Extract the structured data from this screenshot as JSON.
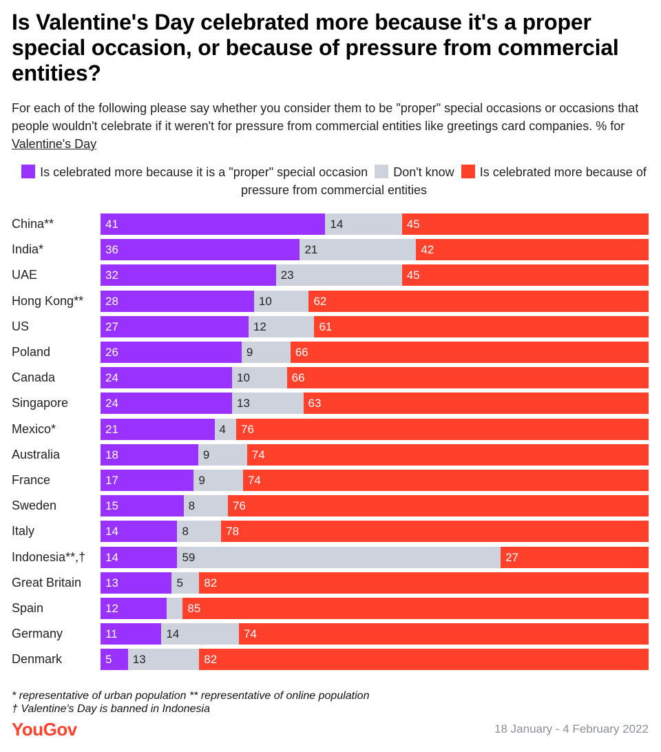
{
  "title": "Is Valentine's Day celebrated more because it's a proper special occasion, or because of pressure from commercial entities?",
  "subtitle_main": "For each of the following please say whether you consider them to be \"proper\" special occasions or occasions that people wouldn't celebrate if it weren't for pressure from commercial entities like greetings card companies. % for ",
  "subtitle_link": "Valentine's Day",
  "legend": [
    {
      "label": "Is celebrated more because it is a \"proper\" special occasion",
      "color": "#9a32ff"
    },
    {
      "label": "Don't know",
      "color": "#cdd2dc"
    },
    {
      "label": "Is celebrated more because of pressure from commercial entities",
      "color": "#ff412c"
    }
  ],
  "footnotes": {
    "line1": "* representative of urban population ** representative of online population",
    "line2": "† Valentine's Day is banned in Indonesia"
  },
  "brand": "YouGov",
  "date_range": "18 January - 4 February 2022",
  "chart_data": {
    "type": "bar",
    "orientation": "horizontal",
    "stacked": true,
    "categories": [
      "China**",
      "India*",
      "UAE",
      "Hong Kong**",
      "US",
      "Poland",
      "Canada",
      "Singapore",
      "Mexico*",
      "Australia",
      "France",
      "Sweden",
      "Italy",
      "Indonesia**,†",
      "Great Britain",
      "Spain",
      "Germany",
      "Denmark"
    ],
    "series": [
      {
        "name": "Is celebrated more because it is a \"proper\" special occasion",
        "color": "#9a32ff",
        "values": [
          41,
          36,
          32,
          28,
          27,
          26,
          24,
          24,
          21,
          18,
          17,
          15,
          14,
          14,
          13,
          12,
          11,
          5
        ]
      },
      {
        "name": "Don't know",
        "color": "#cdd2dc",
        "values": [
          14,
          21,
          23,
          10,
          12,
          9,
          10,
          13,
          4,
          9,
          9,
          8,
          8,
          59,
          5,
          3,
          14,
          13
        ]
      },
      {
        "name": "Is celebrated more because of pressure from commercial entities",
        "color": "#ff412c",
        "values": [
          45,
          42,
          45,
          62,
          61,
          66,
          66,
          63,
          76,
          74,
          74,
          76,
          78,
          27,
          82,
          85,
          74,
          82
        ]
      }
    ],
    "data_labels": [
      [
        "41",
        "14",
        "45"
      ],
      [
        "36",
        "21",
        "42"
      ],
      [
        "32",
        "23",
        "45"
      ],
      [
        "28",
        "10",
        "62"
      ],
      [
        "27",
        "12",
        "61"
      ],
      [
        "26",
        "9",
        "66"
      ],
      [
        "24",
        "10",
        "66"
      ],
      [
        "24",
        "13",
        "63"
      ],
      [
        "21",
        "4",
        "76"
      ],
      [
        "18",
        "9",
        "74"
      ],
      [
        "17",
        "9",
        "74"
      ],
      [
        "15",
        "8",
        "76"
      ],
      [
        "14",
        "8",
        "78"
      ],
      [
        "14",
        "59",
        "27"
      ],
      [
        "13",
        "5",
        "82"
      ],
      [
        "12",
        "",
        "85"
      ],
      [
        "11",
        "14",
        "74"
      ],
      [
        "5",
        "13",
        "82"
      ]
    ],
    "xlim": [
      0,
      100
    ]
  }
}
